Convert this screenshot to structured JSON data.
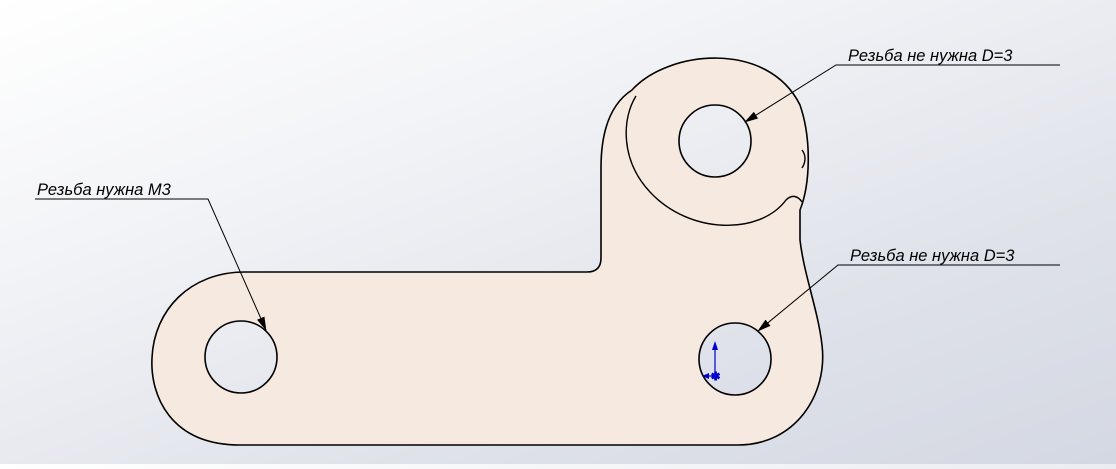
{
  "drawing": {
    "part_fill": "#f6e9df",
    "outline_color": "#000000",
    "axis_color": "#0000cc",
    "callouts": [
      {
        "id": "left-hole",
        "text": "Резьба нужна M3"
      },
      {
        "id": "top-hole",
        "text": "Резьба не нужна D=3"
      },
      {
        "id": "right-hole",
        "text": "Резьба не нужна D=3"
      }
    ]
  }
}
